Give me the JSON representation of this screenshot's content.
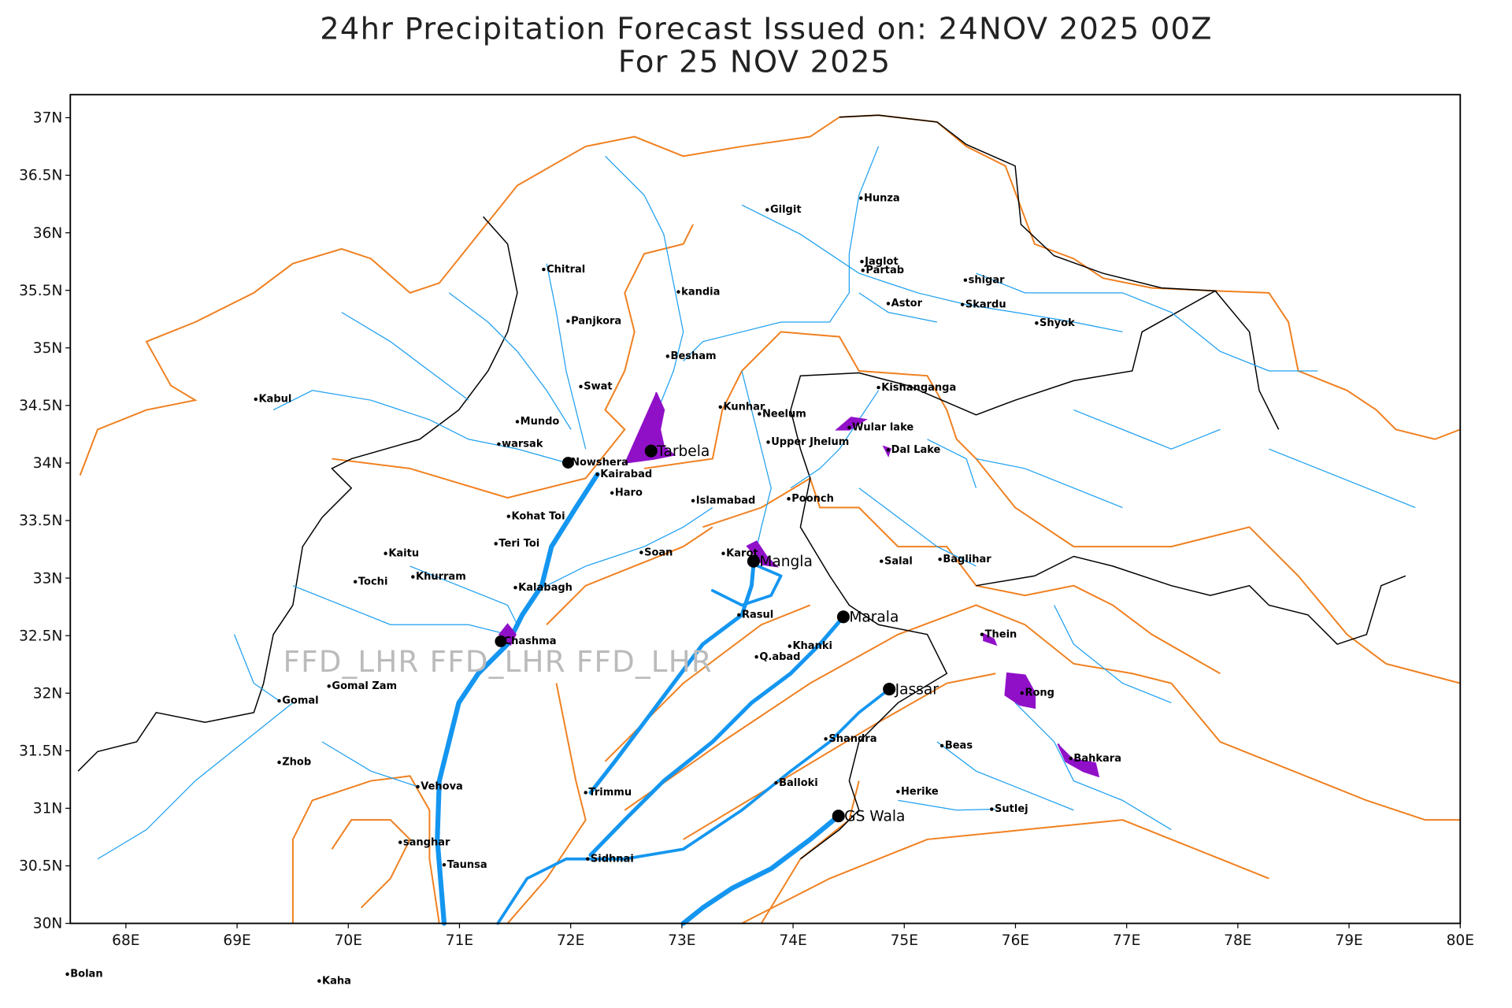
{
  "map": {
    "title": "24hr Precipitation Forecast Issued on:  24NOV 2025 00Z",
    "subtitle": "For 25 NOV 2025",
    "watermark": "FFD_LHR FFD_LHR FFD_LHR",
    "xlim": [
      67.5,
      80
    ],
    "ylim": [
      30,
      37.2
    ],
    "xticks": [
      {
        "value": 68,
        "label": "68E"
      },
      {
        "value": 69,
        "label": "69E"
      },
      {
        "value": 70,
        "label": "70E"
      },
      {
        "value": 71,
        "label": "71E"
      },
      {
        "value": 72,
        "label": "72E"
      },
      {
        "value": 73,
        "label": "73E"
      },
      {
        "value": 74,
        "label": "74E"
      },
      {
        "value": 75,
        "label": "75E"
      },
      {
        "value": 76,
        "label": "76E"
      },
      {
        "value": 77,
        "label": "77E"
      },
      {
        "value": 78,
        "label": "78E"
      },
      {
        "value": 79,
        "label": "79E"
      },
      {
        "value": 80,
        "label": "80E"
      }
    ],
    "yticks": [
      {
        "value": 30,
        "label": "30N"
      },
      {
        "value": 30.5,
        "label": "30.5N"
      },
      {
        "value": 31,
        "label": "31N"
      },
      {
        "value": 31.5,
        "label": "31.5N"
      },
      {
        "value": 32,
        "label": "32N"
      },
      {
        "value": 32.5,
        "label": "32.5N"
      },
      {
        "value": 33,
        "label": "33N"
      },
      {
        "value": 33.5,
        "label": "33.5N"
      },
      {
        "value": 34,
        "label": "34N"
      },
      {
        "value": 34.5,
        "label": "34.5N"
      },
      {
        "value": 35,
        "label": "35N"
      },
      {
        "value": 35.5,
        "label": "35.5N"
      },
      {
        "value": 36,
        "label": "36N"
      },
      {
        "value": 36.5,
        "label": "36.5N"
      },
      {
        "value": 37,
        "label": "37N"
      }
    ],
    "places": [
      "Hunza",
      "Gilgit",
      "Jaglot",
      "Partab",
      "shigar",
      "Astor",
      "Skardu",
      "Shyok",
      "Chitral",
      "kandia",
      "Panjkora",
      "Besham",
      "Kishanganga",
      "Swat",
      "Kabul",
      "Kunhar",
      "Neelum",
      "Mundo",
      "Wular lake",
      "Upper Jhelum",
      "warsak",
      "Dal Lake",
      "Kairabad",
      "Haro",
      "Islamabad",
      "Poonch",
      "Kohat Toi",
      "Teri Toi",
      "Soan",
      "Kaitu",
      "Karot",
      "Salal",
      "Baglihar",
      "Tochi",
      "Khurram",
      "Kalabagh",
      "Rasul",
      "Thein",
      "Khanki",
      "Q.abad",
      "Gomal Zam",
      "Rong",
      "Gomal",
      "Shandra",
      "Beas",
      "Zhob",
      "Bahkara",
      "Vehova",
      "Balloki",
      "Trimmu",
      "Herike",
      "Sutlej",
      "sanghar",
      "Taunsa",
      "Sidhnai",
      "Bolan",
      "Kaha",
      "Nowshera",
      "Chashma"
    ],
    "barrages": [
      "Tarbela",
      "Mangla",
      "Marala",
      "Jassar",
      "GS Wala"
    ]
  }
}
